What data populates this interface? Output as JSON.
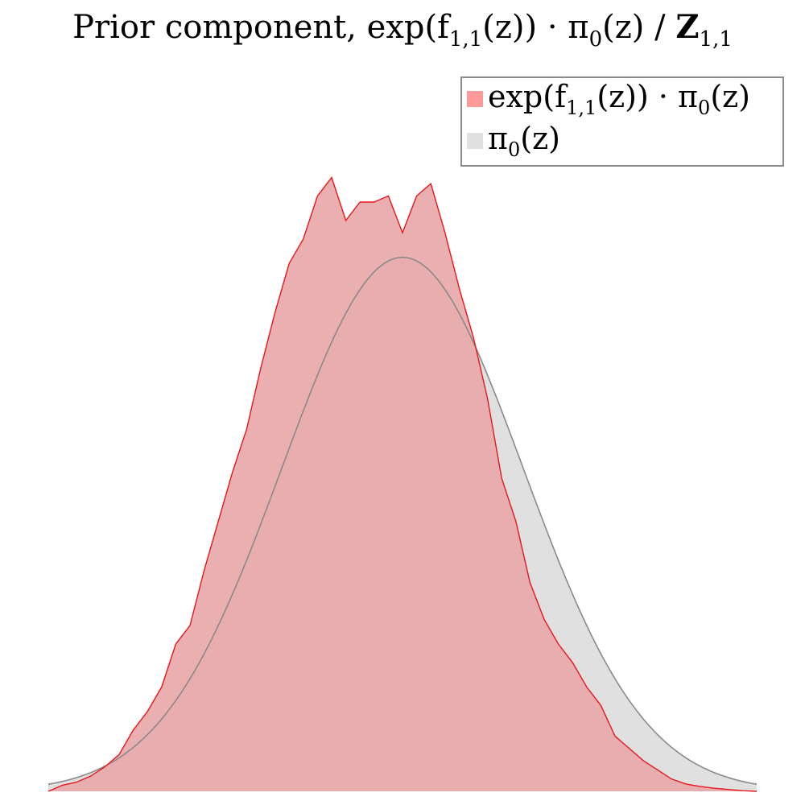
{
  "title": {
    "prefix": "Prior component, exp(f",
    "sub1": "1,1",
    "middle": "(z)) · π",
    "sub2": "0",
    "after": "(z) / ",
    "bold_symbol": "Z",
    "sub3": "1,1"
  },
  "legend": {
    "placement": "top-right",
    "entries": [
      {
        "prefix": "exp(f",
        "sub1": "1,1",
        "middle": "(z)) · π",
        "sub2": "0",
        "suffix": "(z)",
        "color": "#ff9a9a"
      },
      {
        "prefix": "π",
        "sub1": "0",
        "suffix": "(z)",
        "color": "#e0e0e0"
      }
    ]
  },
  "chart_data": {
    "type": "area",
    "axes_visible": false,
    "grid": false,
    "xlim": [
      0,
      100
    ],
    "ylim": [
      0,
      1.04
    ],
    "series": [
      {
        "name": "exp(f_{1,1}(z)) · π_0(z)",
        "color": "#e8a9aa",
        "stroke": "#e8161b",
        "x": [
          0,
          2,
          4,
          6,
          8,
          10,
          12,
          14,
          16,
          18,
          20,
          22,
          24,
          26,
          28,
          30,
          32,
          34,
          36,
          38,
          40,
          42,
          44,
          46,
          48,
          50,
          52,
          54,
          56,
          58,
          60,
          62,
          64,
          66,
          68,
          70,
          72,
          74,
          76,
          78,
          80,
          82,
          84,
          86,
          88,
          90,
          92,
          94,
          96,
          98,
          100
        ],
        "y": [
          0.0,
          0.01,
          0.015,
          0.025,
          0.04,
          0.06,
          0.1,
          0.13,
          0.17,
          0.24,
          0.27,
          0.36,
          0.44,
          0.52,
          0.59,
          0.69,
          0.78,
          0.86,
          0.9,
          0.97,
          1.0,
          0.93,
          0.96,
          0.96,
          0.97,
          0.91,
          0.97,
          0.99,
          0.91,
          0.82,
          0.74,
          0.64,
          0.51,
          0.44,
          0.34,
          0.28,
          0.24,
          0.21,
          0.17,
          0.14,
          0.09,
          0.07,
          0.05,
          0.035,
          0.02,
          0.012,
          0.008,
          0.005,
          0.003,
          0.001,
          0.0
        ]
      },
      {
        "name": "π_0(z)",
        "color": "#e0e0e0",
        "stroke": "#8a8a8a",
        "mean": 50,
        "sd": 17,
        "peak": 0.87
      }
    ]
  }
}
